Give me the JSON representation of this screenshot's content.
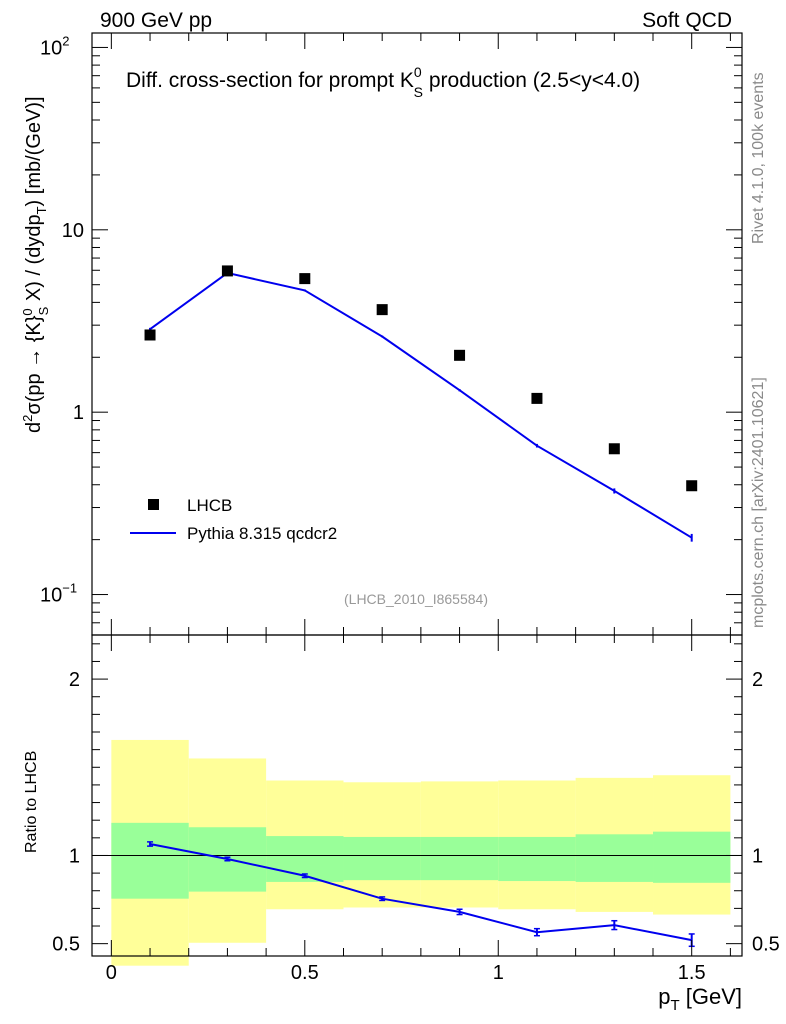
{
  "header": {
    "left": "900 GeV pp",
    "right": "Soft QCD"
  },
  "side_labels": {
    "rivet": "Rivet 4.1.0,  100k events",
    "mcplots": "mcplots.cern.ch [arXiv:2401.10621]"
  },
  "colors": {
    "data": "#000000",
    "mc": "#0000ee",
    "band_inner": "#99ff99",
    "band_outer": "#ffff99",
    "watermark": "#999999"
  },
  "chart_data": [
    {
      "type": "scatter",
      "panel": "main",
      "title": "Diff. cross-section for prompt K0S production (2.5<y<4.0)",
      "title_parts": {
        "before": "Diff. cross-section for prompt K",
        "sup": "0",
        "sub": "S",
        "after": " production (2.5<y<4.0)"
      },
      "ylabel": "d²σ(pp → {K}0S X) / (dydpT) [mb/(GeV)]",
      "ylabel_parts": {
        "d2": "d",
        "two": "2",
        "mid": "σ(pp → {K}",
        "zero": "0",
        "s": "S",
        "x": " X) / (dydp",
        "t": "T",
        "end": ") [mb/(GeV)]"
      },
      "yscale": "log",
      "ylim": [
        0.06,
        120
      ],
      "xlim": [
        -0.05,
        1.63
      ],
      "yticks": [
        {
          "v": 0.1,
          "label": "10",
          "sup": "−1"
        },
        {
          "v": 1,
          "label": "1",
          "sup": ""
        },
        {
          "v": 10,
          "label": "10",
          "sup": ""
        },
        {
          "v": 100,
          "label": "10",
          "sup": "2"
        }
      ],
      "legend": [
        {
          "name": "LHCB",
          "kind": "marker"
        },
        {
          "name": "Pythia 8.315 qcdcr2",
          "kind": "line"
        }
      ],
      "watermark": "(LHCB_2010_I865584)",
      "series": [
        {
          "name": "LHCB",
          "x": [
            0.1,
            0.3,
            0.5,
            0.7,
            0.9,
            1.1,
            1.3,
            1.5
          ],
          "y": [
            2.65,
            5.95,
            5.4,
            3.65,
            2.05,
            1.19,
            0.63,
            0.395
          ]
        },
        {
          "name": "Pythia 8.315 qcdcr2",
          "x": [
            0.1,
            0.3,
            0.5,
            0.7,
            0.9,
            1.1,
            1.3,
            1.5
          ],
          "y": [
            2.85,
            5.8,
            4.65,
            2.6,
            1.32,
            0.655,
            0.37,
            0.205
          ],
          "err": [
            0.05,
            0.08,
            0.06,
            0.03,
            0.02,
            0.015,
            0.012,
            0.01
          ]
        }
      ]
    },
    {
      "type": "line",
      "panel": "ratio",
      "ylabel": "Ratio to LHCB",
      "xlabel": "p",
      "xlabel_sub": "T",
      "xlabel_unit": " [GeV]",
      "ylim": [
        0.43,
        2.25
      ],
      "xlim": [
        -0.05,
        1.63
      ],
      "xticks": [
        {
          "v": 0,
          "label": "0"
        },
        {
          "v": 0.5,
          "label": "0.5"
        },
        {
          "v": 1,
          "label": "1"
        },
        {
          "v": 1.5,
          "label": "1.5"
        }
      ],
      "yticks": [
        {
          "v": 0.5,
          "label": "0.5"
        },
        {
          "v": 1,
          "label": "1"
        },
        {
          "v": 2,
          "label": "2"
        }
      ],
      "bands": [
        {
          "x0": 0.0,
          "x1": 0.2,
          "inner": [
            0.755,
            1.185
          ],
          "outer": [
            0.375,
            1.655
          ]
        },
        {
          "x0": 0.2,
          "x1": 0.4,
          "inner": [
            0.795,
            1.16
          ],
          "outer": [
            0.505,
            1.55
          ]
        },
        {
          "x0": 0.4,
          "x1": 0.6,
          "inner": [
            0.85,
            1.11
          ],
          "outer": [
            0.695,
            1.425
          ]
        },
        {
          "x0": 0.6,
          "x1": 0.8,
          "inner": [
            0.86,
            1.105
          ],
          "outer": [
            0.705,
            1.415
          ]
        },
        {
          "x0": 0.8,
          "x1": 1.0,
          "inner": [
            0.86,
            1.105
          ],
          "outer": [
            0.705,
            1.42
          ]
        },
        {
          "x0": 1.0,
          "x1": 1.2,
          "inner": [
            0.855,
            1.105
          ],
          "outer": [
            0.695,
            1.425
          ]
        },
        {
          "x0": 1.2,
          "x1": 1.4,
          "inner": [
            0.85,
            1.12
          ],
          "outer": [
            0.68,
            1.44
          ]
        },
        {
          "x0": 1.4,
          "x1": 1.6,
          "inner": [
            0.845,
            1.135
          ],
          "outer": [
            0.665,
            1.455
          ]
        }
      ],
      "series": [
        {
          "name": "Pythia 8.315 qcdcr2 / LHCB",
          "x": [
            0.1,
            0.3,
            0.5,
            0.7,
            0.9,
            1.1,
            1.3,
            1.5
          ],
          "y": [
            1.065,
            0.98,
            0.885,
            0.755,
            0.68,
            0.565,
            0.605,
            0.52
          ],
          "err": [
            0.012,
            0.01,
            0.01,
            0.01,
            0.015,
            0.02,
            0.025,
            0.035
          ]
        }
      ]
    }
  ]
}
